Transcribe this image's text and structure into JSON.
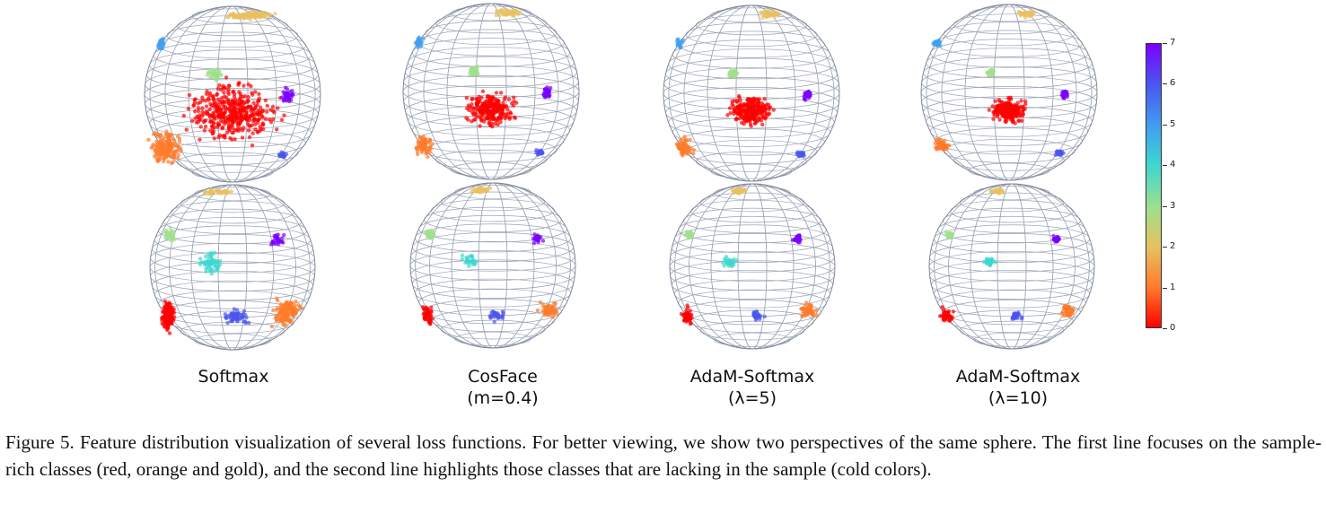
{
  "figure": {
    "panels_top": [
      {
        "label_line1": "Softmax",
        "label_line2": ""
      },
      {
        "label_line1": "CosFace",
        "label_line2": "(m=0.4)"
      },
      {
        "label_line1": "AdaM-Softmax",
        "label_line2": "(λ=5)"
      },
      {
        "label_line1": "AdaM-Softmax",
        "label_line2": "(λ=10)"
      }
    ],
    "colorbar": {
      "ticks": [
        "0",
        "1",
        "2",
        "3",
        "4",
        "5",
        "6",
        "7"
      ],
      "colors": [
        "#ff0000",
        "#ff7a2a",
        "#e8c060",
        "#9fe08a",
        "#3fd7d0",
        "#3f9ff0",
        "#4a55f0",
        "#7b00ff"
      ]
    }
  },
  "caption": "Figure 5. Feature distribution visualization of several loss functions. For better viewing, we show two perspectives of the same sphere. The first line focuses on the sample-rich classes (red, orange and gold), and the second line highlights those classes that are lacking in the sample (cold colors)."
}
